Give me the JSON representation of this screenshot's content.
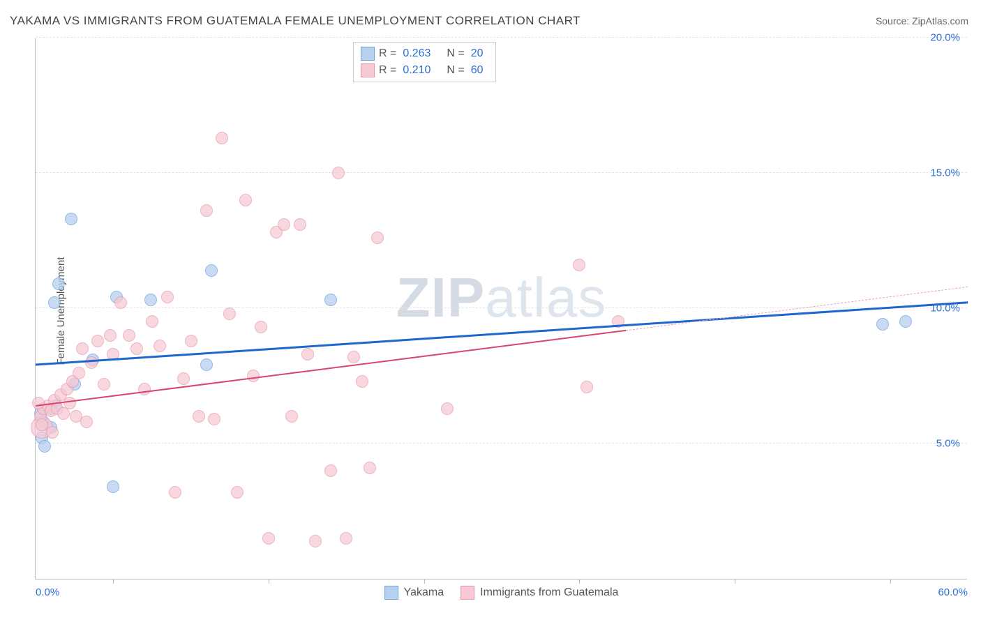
{
  "title": "YAKAMA VS IMMIGRANTS FROM GUATEMALA FEMALE UNEMPLOYMENT CORRELATION CHART",
  "source_label": "Source:",
  "source_name": "ZipAtlas.com",
  "ylabel": "Female Unemployment",
  "watermark": {
    "bold": "ZIP",
    "rest": "atlas"
  },
  "chart": {
    "type": "scatter",
    "xlim": [
      0,
      60
    ],
    "ylim": [
      0,
      20
    ],
    "background": "#ffffff",
    "grid_color": "#e3e3e3",
    "axis_color": "#bbbbbb",
    "y_ticks": [
      5,
      10,
      15,
      20
    ],
    "y_tick_labels": [
      "5.0%",
      "10.0%",
      "15.0%",
      "20.0%"
    ],
    "x_ticks": [
      5,
      15,
      25,
      35,
      45,
      55
    ],
    "x_axis_labels": [
      {
        "x": 0,
        "text": "0.0%"
      },
      {
        "x": 60,
        "text": "60.0%"
      }
    ],
    "tick_label_color": "#2b6fd6",
    "tick_label_fontsize": 15,
    "series": [
      {
        "key": "yakama",
        "label": "Yakama",
        "fill": "#b7d0ee",
        "stroke": "#6fa3e0",
        "opacity": 0.75,
        "marker_r": 9,
        "R": "0.263",
        "N": "20",
        "trend": {
          "x1": 0,
          "y1": 7.9,
          "x2": 60,
          "y2": 10.2,
          "color": "#1e66d0",
          "solid_until_x": 60,
          "width": 3
        },
        "points": [
          [
            0.4,
            5.2
          ],
          [
            0.6,
            4.9
          ],
          [
            0.5,
            5.8
          ],
          [
            1.3,
            6.4
          ],
          [
            1.0,
            6.3
          ],
          [
            2.3,
            13.3
          ],
          [
            1.5,
            10.9
          ],
          [
            1.2,
            10.2
          ],
          [
            5.2,
            10.4
          ],
          [
            7.4,
            10.3
          ],
          [
            3.7,
            8.1
          ],
          [
            11.3,
            11.4
          ],
          [
            11.0,
            7.9
          ],
          [
            19.0,
            10.3
          ],
          [
            5.0,
            3.4
          ],
          [
            1.0,
            5.6
          ],
          [
            2.5,
            7.2
          ],
          [
            0.3,
            6.1
          ],
          [
            54.5,
            9.4
          ],
          [
            56.0,
            9.5
          ]
        ]
      },
      {
        "key": "guatemala",
        "label": "Immigrants from Guatemala",
        "fill": "#f6c9d4",
        "stroke": "#e697ac",
        "opacity": 0.72,
        "marker_r": 9,
        "R": "0.210",
        "N": "60",
        "trend": {
          "x1": 0,
          "y1": 6.4,
          "x2": 60,
          "y2": 10.8,
          "color": "#d9456f",
          "solid_until_x": 38,
          "width": 2,
          "dash_color": "#e9a3b5"
        },
        "points": [
          [
            0.3,
            6.0
          ],
          [
            0.5,
            6.3
          ],
          [
            0.8,
            6.4
          ],
          [
            1.0,
            6.2
          ],
          [
            1.2,
            6.6
          ],
          [
            1.4,
            6.3
          ],
          [
            1.6,
            6.8
          ],
          [
            1.8,
            6.1
          ],
          [
            2.0,
            7.0
          ],
          [
            2.2,
            6.5
          ],
          [
            2.4,
            7.3
          ],
          [
            2.6,
            6.0
          ],
          [
            2.8,
            7.6
          ],
          [
            3.0,
            8.5
          ],
          [
            3.3,
            5.8
          ],
          [
            3.6,
            8.0
          ],
          [
            4.0,
            8.8
          ],
          [
            4.4,
            7.2
          ],
          [
            4.8,
            9.0
          ],
          [
            5.0,
            8.3
          ],
          [
            5.5,
            10.2
          ],
          [
            6.0,
            9.0
          ],
          [
            6.5,
            8.5
          ],
          [
            7.0,
            7.0
          ],
          [
            7.5,
            9.5
          ],
          [
            8.0,
            8.6
          ],
          [
            8.5,
            10.4
          ],
          [
            9.0,
            3.2
          ],
          [
            9.5,
            7.4
          ],
          [
            10.0,
            8.8
          ],
          [
            10.5,
            6.0
          ],
          [
            11.0,
            13.6
          ],
          [
            11.5,
            5.9
          ],
          [
            12.0,
            16.3
          ],
          [
            12.5,
            9.8
          ],
          [
            13.0,
            3.2
          ],
          [
            13.5,
            14.0
          ],
          [
            14.0,
            7.5
          ],
          [
            14.5,
            9.3
          ],
          [
            15.0,
            1.5
          ],
          [
            15.5,
            12.8
          ],
          [
            16.0,
            13.1
          ],
          [
            16.5,
            6.0
          ],
          [
            17.0,
            13.1
          ],
          [
            17.5,
            8.3
          ],
          [
            18.0,
            1.4
          ],
          [
            19.0,
            4.0
          ],
          [
            19.5,
            15.0
          ],
          [
            20.0,
            1.5
          ],
          [
            20.5,
            8.2
          ],
          [
            21.0,
            7.3
          ],
          [
            21.5,
            4.1
          ],
          [
            22.0,
            12.6
          ],
          [
            26.5,
            6.3
          ],
          [
            35.0,
            11.6
          ],
          [
            35.5,
            7.1
          ],
          [
            37.5,
            9.5
          ],
          [
            1.1,
            5.4
          ],
          [
            0.4,
            5.7
          ],
          [
            0.2,
            6.5
          ]
        ],
        "big_point": {
          "x": 0.4,
          "y": 5.6,
          "r": 16
        }
      }
    ],
    "stats_legend_labels": {
      "R": "R =",
      "N": "N ="
    },
    "bottom_legend": [
      {
        "series": "yakama"
      },
      {
        "series": "guatemala"
      }
    ]
  }
}
